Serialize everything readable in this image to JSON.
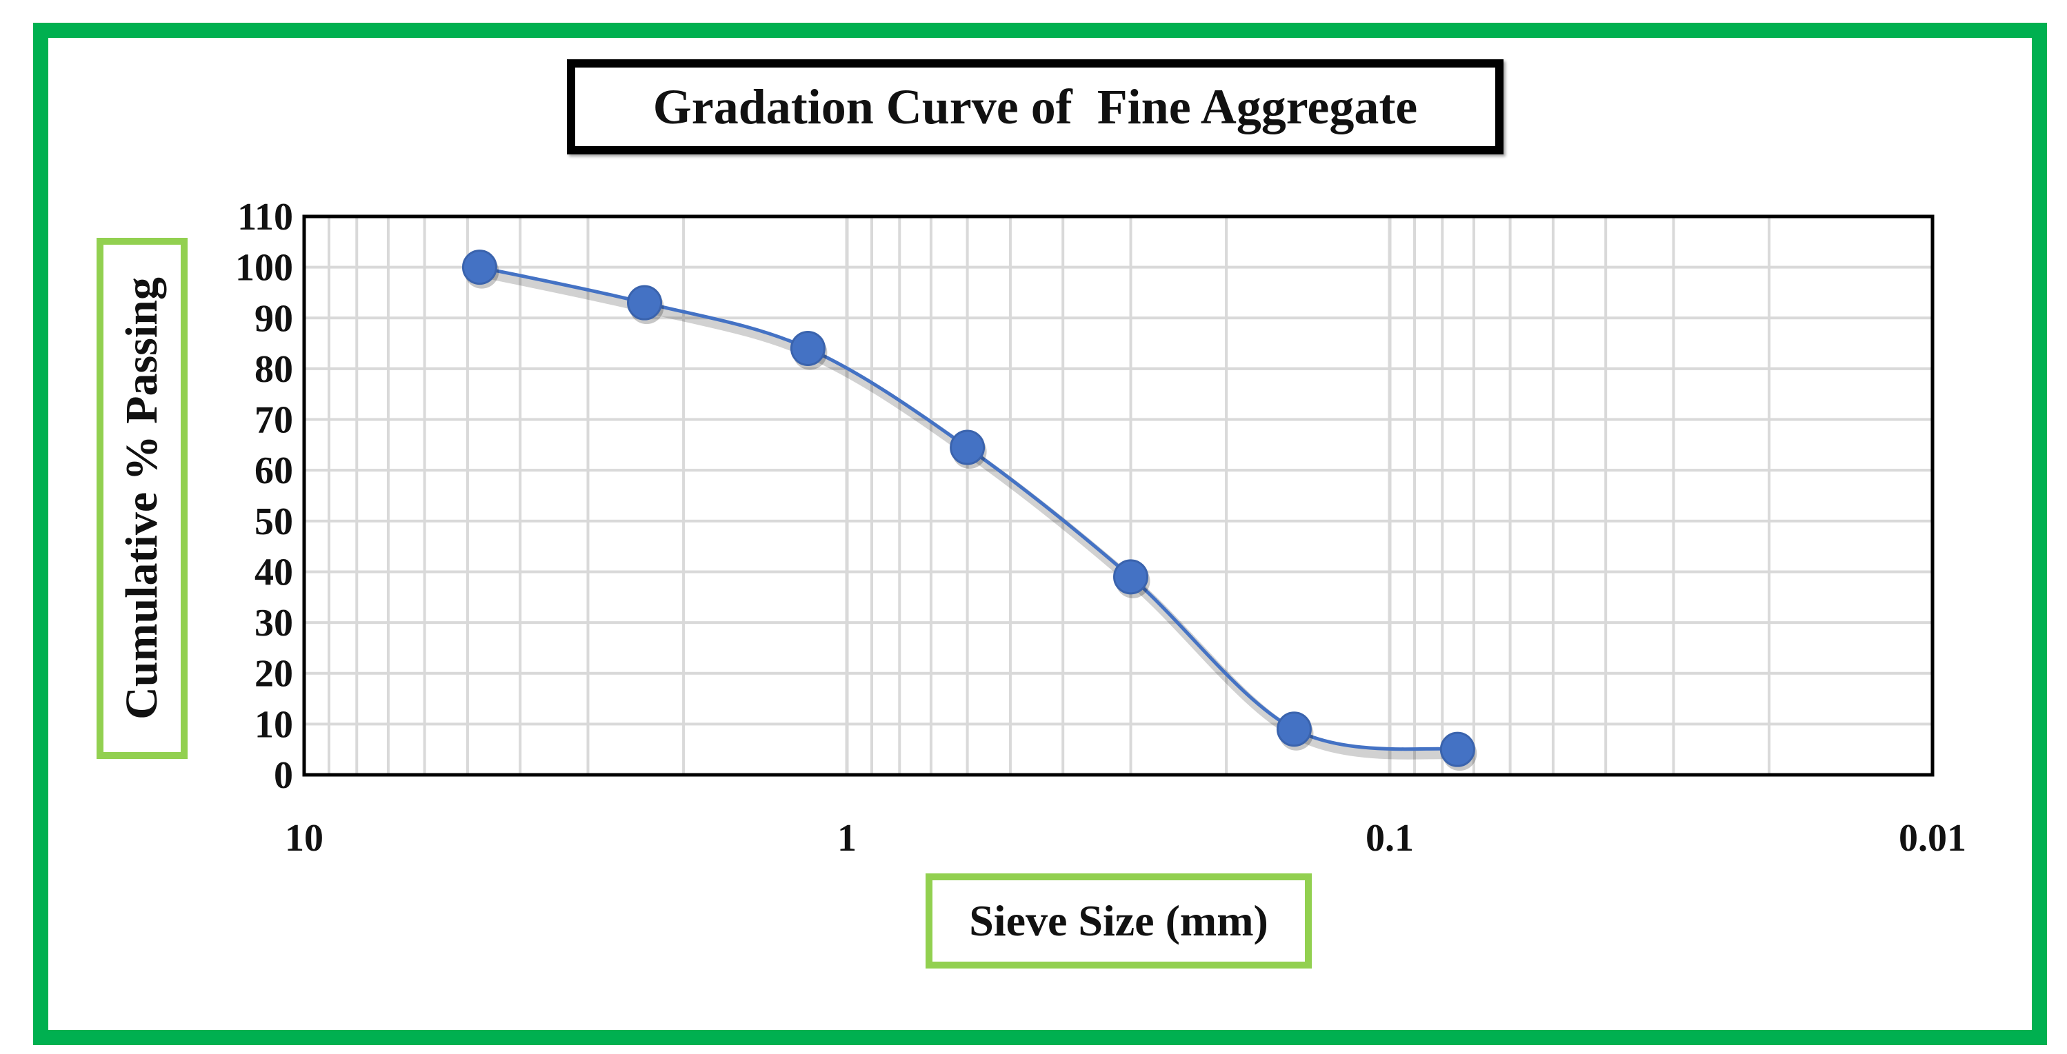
{
  "chart_data": {
    "type": "scatter",
    "title": "Gradation Curve of  Fine Aggregate",
    "xlabel": "Sieve Size (mm)",
    "ylabel": "Cumulative % Passing",
    "x_scale": "log",
    "x_reversed": true,
    "xlim": [
      10,
      0.01
    ],
    "ylim": [
      0,
      110
    ],
    "x_ticks": [
      "10",
      "1",
      "0.1",
      "0.01"
    ],
    "x_tick_values": [
      10,
      1,
      0.1,
      0.01
    ],
    "y_ticks": [
      "0",
      "10",
      "20",
      "30",
      "40",
      "50",
      "60",
      "70",
      "80",
      "90",
      "100",
      "110"
    ],
    "y_tick_values": [
      0,
      10,
      20,
      30,
      40,
      50,
      60,
      70,
      80,
      90,
      100,
      110
    ],
    "grid": true,
    "legend": "none",
    "line_style": "smooth",
    "series_color": "#4472c4",
    "series": [
      {
        "x": [
          4.75,
          2.36,
          1.18,
          0.6,
          0.3,
          0.15,
          0.075
        ],
        "y": [
          100,
          93,
          84,
          64.5,
          39,
          9,
          5
        ]
      }
    ]
  },
  "colors": {
    "frame": "#00b050",
    "label_box_border": "#92d050",
    "title_box_border": "#000000",
    "grid": "#d9d9d9"
  }
}
